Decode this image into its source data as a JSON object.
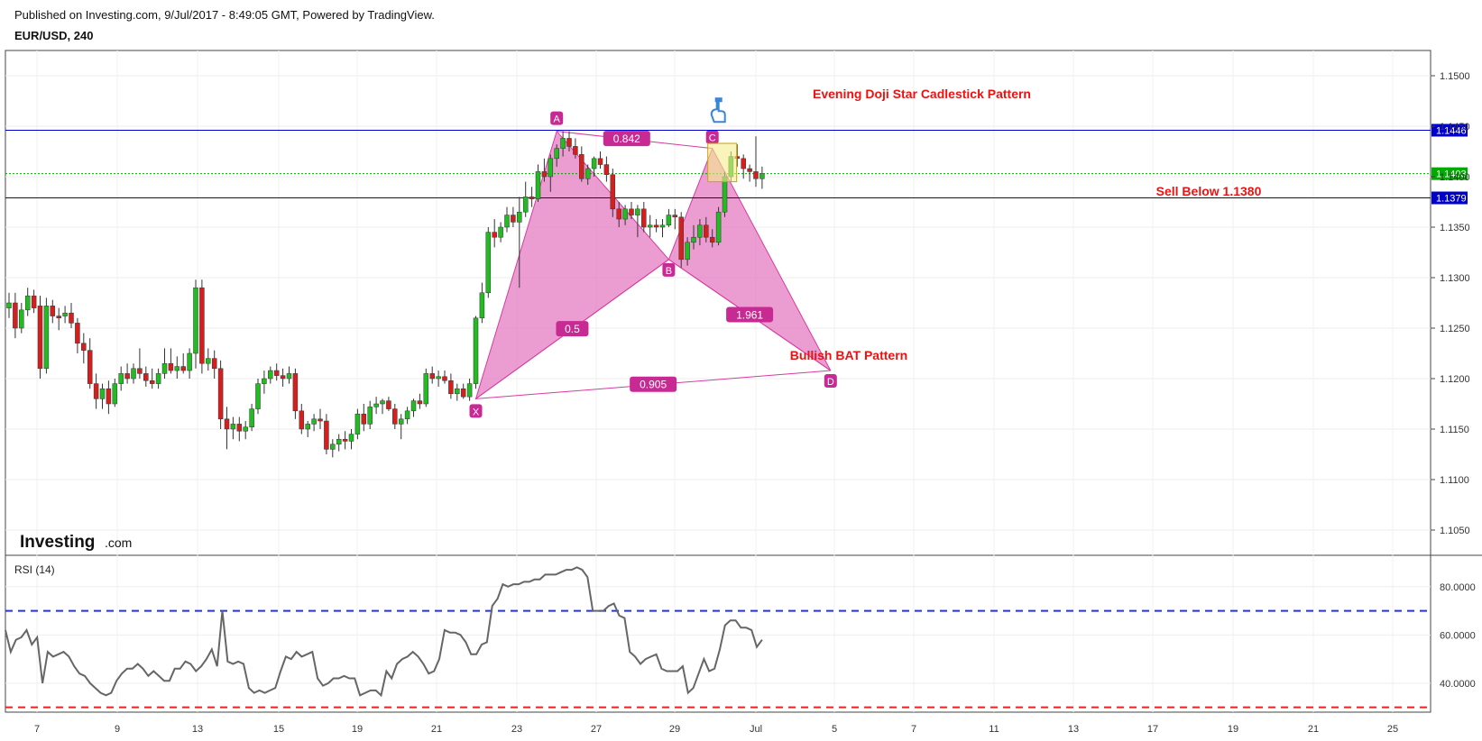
{
  "header": {
    "published": "Published on Investing.com, 9/Jul/2017 - 8:49:05 GMT, Powered by TradingView.",
    "symbol": "EUR/USD, 240"
  },
  "colors": {
    "up": "#22bb22",
    "down": "#d51f1f",
    "pattern_fill": "#e47cc3",
    "pattern_stroke": "#d63ba0",
    "label_bg": "#c72a92",
    "level_line": "#0000cc",
    "price_line": "#00aa00",
    "annotation_red": "#ee1111",
    "rsi_line": "#666666",
    "rsi_upper": "#2233ee",
    "rsi_lower": "#ee2222",
    "highlight": "#f5ec8a",
    "hand_icon": "#3a86d6"
  },
  "logo": {
    "brand": "Investing",
    "suffix": ".com"
  },
  "chart_data": {
    "type": "candlestick",
    "symbol": "EUR/USD",
    "interval": "240",
    "ylim": [
      1.1025,
      1.1525
    ],
    "y_ticks": [
      "1.1050",
      "1.1100",
      "1.1150",
      "1.1200",
      "1.1250",
      "1.1300",
      "1.1350",
      "1.1400",
      "1.1450",
      "1.1500"
    ],
    "x_ticks": [
      "7",
      "9",
      "13",
      "15",
      "19",
      "21",
      "23",
      "27",
      "29",
      "Jul",
      "5",
      "7",
      "11",
      "13",
      "17",
      "19",
      "21",
      "25"
    ],
    "grid": true,
    "candles_ohlc": [
      [
        1.127,
        1.1285,
        1.126,
        1.1275
      ],
      [
        1.1275,
        1.1285,
        1.124,
        1.125
      ],
      [
        1.125,
        1.1275,
        1.1245,
        1.1268
      ],
      [
        1.1268,
        1.129,
        1.1262,
        1.1282
      ],
      [
        1.1282,
        1.1288,
        1.1265,
        1.127
      ],
      [
        1.1272,
        1.1282,
        1.12,
        1.121
      ],
      [
        1.121,
        1.128,
        1.1205,
        1.1272
      ],
      [
        1.1272,
        1.1278,
        1.1255,
        1.1262
      ],
      [
        1.1262,
        1.127,
        1.1248,
        1.126
      ],
      [
        1.1262,
        1.1272,
        1.1255,
        1.1265
      ],
      [
        1.1265,
        1.1275,
        1.125,
        1.1255
      ],
      [
        1.1255,
        1.126,
        1.1225,
        1.1235
      ],
      [
        1.1235,
        1.1245,
        1.1215,
        1.1228
      ],
      [
        1.1228,
        1.124,
        1.119,
        1.1195
      ],
      [
        1.1195,
        1.1205,
        1.117,
        1.118
      ],
      [
        1.118,
        1.1195,
        1.117,
        1.119
      ],
      [
        1.119,
        1.1198,
        1.1165,
        1.1175
      ],
      [
        1.1175,
        1.12,
        1.1172,
        1.1195
      ],
      [
        1.1195,
        1.1212,
        1.1188,
        1.1205
      ],
      [
        1.1205,
        1.1215,
        1.1195,
        1.12
      ],
      [
        1.12,
        1.1215,
        1.1195,
        1.121
      ],
      [
        1.121,
        1.123,
        1.12,
        1.1205
      ],
      [
        1.1205,
        1.1212,
        1.1192,
        1.1198
      ],
      [
        1.1198,
        1.121,
        1.119,
        1.1195
      ],
      [
        1.1195,
        1.121,
        1.119,
        1.1205
      ],
      [
        1.1205,
        1.123,
        1.12,
        1.1215
      ],
      [
        1.1215,
        1.123,
        1.1205,
        1.1208
      ],
      [
        1.1208,
        1.1222,
        1.12,
        1.1212
      ],
      [
        1.1212,
        1.1225,
        1.1205,
        1.1208
      ],
      [
        1.1208,
        1.123,
        1.12,
        1.1225
      ],
      [
        1.1225,
        1.1298,
        1.121,
        1.129
      ],
      [
        1.129,
        1.1298,
        1.1205,
        1.1215
      ],
      [
        1.1215,
        1.123,
        1.1208,
        1.122
      ],
      [
        1.122,
        1.1228,
        1.12,
        1.121
      ],
      [
        1.121,
        1.1218,
        1.115,
        1.116
      ],
      [
        1.116,
        1.1172,
        1.113,
        1.115
      ],
      [
        1.115,
        1.1162,
        1.114,
        1.1155
      ],
      [
        1.1155,
        1.1162,
        1.1138,
        1.1148
      ],
      [
        1.1148,
        1.1158,
        1.114,
        1.1152
      ],
      [
        1.1152,
        1.1175,
        1.1148,
        1.117
      ],
      [
        1.117,
        1.12,
        1.1165,
        1.1195
      ],
      [
        1.1195,
        1.1208,
        1.1185,
        1.12
      ],
      [
        1.12,
        1.1212,
        1.1195,
        1.1208
      ],
      [
        1.1208,
        1.1215,
        1.1198,
        1.1203
      ],
      [
        1.1203,
        1.121,
        1.1192,
        1.12
      ],
      [
        1.12,
        1.1212,
        1.1195,
        1.1205
      ],
      [
        1.1205,
        1.121,
        1.116,
        1.1168
      ],
      [
        1.1168,
        1.1175,
        1.1145,
        1.115
      ],
      [
        1.115,
        1.1158,
        1.1142,
        1.1155
      ],
      [
        1.1155,
        1.1165,
        1.1148,
        1.116
      ],
      [
        1.116,
        1.117,
        1.115,
        1.1158
      ],
      [
        1.1158,
        1.1165,
        1.1125,
        1.113
      ],
      [
        1.113,
        1.114,
        1.1122,
        1.1135
      ],
      [
        1.1135,
        1.1145,
        1.1128,
        1.114
      ],
      [
        1.114,
        1.1148,
        1.113,
        1.1138
      ],
      [
        1.1138,
        1.115,
        1.113,
        1.1145
      ],
      [
        1.1145,
        1.117,
        1.114,
        1.1165
      ],
      [
        1.1165,
        1.1175,
        1.1148,
        1.1155
      ],
      [
        1.1155,
        1.1178,
        1.115,
        1.1172
      ],
      [
        1.1172,
        1.1182,
        1.1165,
        1.1175
      ],
      [
        1.1175,
        1.118,
        1.1165,
        1.1178
      ],
      [
        1.1178,
        1.1182,
        1.1168,
        1.117
      ],
      [
        1.117,
        1.1175,
        1.115,
        1.1155
      ],
      [
        1.1155,
        1.1165,
        1.114,
        1.116
      ],
      [
        1.116,
        1.1172,
        1.1155,
        1.1168
      ],
      [
        1.1168,
        1.118,
        1.1162,
        1.1178
      ],
      [
        1.1178,
        1.1185,
        1.117,
        1.1175
      ],
      [
        1.1175,
        1.121,
        1.1172,
        1.1205
      ],
      [
        1.1205,
        1.1212,
        1.1195,
        1.12
      ],
      [
        1.12,
        1.1208,
        1.1192,
        1.1202
      ],
      [
        1.1202,
        1.1208,
        1.1195,
        1.1198
      ],
      [
        1.1198,
        1.1205,
        1.118,
        1.1185
      ],
      [
        1.1185,
        1.1195,
        1.1178,
        1.119
      ],
      [
        1.119,
        1.1195,
        1.118,
        1.1182
      ],
      [
        1.1182,
        1.12,
        1.1178,
        1.1195
      ],
      [
        1.1195,
        1.1262,
        1.119,
        1.126
      ],
      [
        1.126,
        1.1295,
        1.1255,
        1.1285
      ],
      [
        1.1285,
        1.135,
        1.128,
        1.1345
      ],
      [
        1.1345,
        1.1358,
        1.133,
        1.134
      ],
      [
        1.134,
        1.1355,
        1.1335,
        1.135
      ],
      [
        1.135,
        1.137,
        1.1345,
        1.1362
      ],
      [
        1.1362,
        1.137,
        1.135,
        1.1355
      ],
      [
        1.1355,
        1.138,
        1.129,
        1.1365
      ],
      [
        1.1365,
        1.1395,
        1.136,
        1.138
      ],
      [
        1.138,
        1.139,
        1.137,
        1.1378
      ],
      [
        1.1378,
        1.1412,
        1.1375,
        1.1405
      ],
      [
        1.1405,
        1.1418,
        1.1395,
        1.14
      ],
      [
        1.14,
        1.1422,
        1.1385,
        1.1418
      ],
      [
        1.1418,
        1.1432,
        1.141,
        1.1428
      ],
      [
        1.1428,
        1.1445,
        1.142,
        1.1438
      ],
      [
        1.1438,
        1.1445,
        1.1425,
        1.143
      ],
      [
        1.143,
        1.1438,
        1.1418,
        1.1422
      ],
      [
        1.1422,
        1.143,
        1.1395,
        1.1398
      ],
      [
        1.1398,
        1.1412,
        1.1392,
        1.1408
      ],
      [
        1.1408,
        1.142,
        1.14,
        1.1418
      ],
      [
        1.1418,
        1.1425,
        1.1408,
        1.1412
      ],
      [
        1.1412,
        1.142,
        1.1395,
        1.1402
      ],
      [
        1.1402,
        1.1408,
        1.136,
        1.1368
      ],
      [
        1.1368,
        1.1375,
        1.135,
        1.1358
      ],
      [
        1.1358,
        1.1372,
        1.1352,
        1.1368
      ],
      [
        1.1368,
        1.1375,
        1.1358,
        1.1362
      ],
      [
        1.1362,
        1.1372,
        1.134,
        1.1368
      ],
      [
        1.1368,
        1.1375,
        1.1345,
        1.135
      ],
      [
        1.135,
        1.1362,
        1.134,
        1.1352
      ],
      [
        1.1352,
        1.1358,
        1.1345,
        1.135
      ],
      [
        1.135,
        1.1358,
        1.134,
        1.1352
      ],
      [
        1.1352,
        1.1368,
        1.135,
        1.1362
      ],
      [
        1.1362,
        1.1368,
        1.1348,
        1.136
      ],
      [
        1.136,
        1.1365,
        1.131,
        1.1318
      ],
      [
        1.1318,
        1.134,
        1.1312,
        1.1335
      ],
      [
        1.1335,
        1.1352,
        1.1328,
        1.134
      ],
      [
        1.134,
        1.1358,
        1.1332,
        1.1352
      ],
      [
        1.1352,
        1.136,
        1.1335,
        1.134
      ],
      [
        1.134,
        1.1348,
        1.133,
        1.1335
      ],
      [
        1.1335,
        1.137,
        1.1332,
        1.1365
      ],
      [
        1.1365,
        1.1405,
        1.136,
        1.14
      ],
      [
        1.14,
        1.1425,
        1.1395,
        1.142
      ],
      [
        1.142,
        1.1432,
        1.141,
        1.1418
      ],
      [
        1.1418,
        1.1422,
        1.1398,
        1.1408
      ],
      [
        1.1408,
        1.1412,
        1.1395,
        1.1405
      ],
      [
        1.1405,
        1.144,
        1.139,
        1.1398
      ],
      [
        1.1398,
        1.141,
        1.1388,
        1.1403
      ]
    ],
    "levels": [
      {
        "value": 1.1446,
        "label": "1.1446",
        "style": "solid"
      },
      {
        "value": 1.1379,
        "label": "1.1379",
        "style": "solid"
      },
      {
        "value": 1.1403,
        "label": "1.1403",
        "style": "dotted"
      }
    ],
    "harmonic_pattern": {
      "name": "Bullish BAT Pattern",
      "points": [
        {
          "label": "X",
          "bar": 75,
          "price": 1.118
        },
        {
          "label": "A",
          "bar": 88,
          "price": 1.1445
        },
        {
          "label": "B",
          "bar": 106,
          "price": 1.1318
        },
        {
          "label": "C",
          "bar": 113,
          "price": 1.1428
        },
        {
          "label": "D",
          "bar": 132,
          "price": 1.1208
        }
      ],
      "ratios": [
        {
          "between": "XB",
          "value": "0.5"
        },
        {
          "between": "AC",
          "value": "0.842"
        },
        {
          "between": "BD",
          "value": "1.961"
        },
        {
          "between": "XD",
          "value": "0.905"
        }
      ]
    },
    "annotations": {
      "doji": "Evening Doji Star Cadlestick Pattern",
      "sell": "Sell Below 1.1380",
      "bat": "Bullish BAT Pattern"
    },
    "rsi": {
      "title": "RSI (14)",
      "ylim": [
        28,
        93
      ],
      "y_ticks": [
        "40.0000",
        "60.0000",
        "80.0000"
      ],
      "upper": 70,
      "lower": 30,
      "values": [
        62,
        53,
        58,
        59,
        62,
        56,
        59,
        40,
        53,
        51,
        52,
        53,
        51,
        47,
        44,
        43,
        40,
        38,
        36,
        35,
        36,
        41,
        44,
        46,
        46,
        48,
        46,
        43,
        45,
        43,
        41,
        41,
        46,
        46,
        49,
        48,
        45,
        47,
        50,
        54,
        47,
        70,
        49,
        48,
        49,
        48,
        38,
        36,
        37,
        36,
        37,
        38,
        45,
        51,
        50,
        53,
        51,
        52,
        53,
        42,
        39,
        40,
        42,
        42,
        43,
        42,
        42,
        35,
        36,
        37,
        37,
        35,
        45,
        42,
        48,
        50,
        51,
        53,
        51,
        48,
        44,
        45,
        50,
        62,
        61,
        61,
        60,
        57,
        52,
        52,
        56,
        57,
        72,
        75,
        81,
        80,
        81,
        81,
        82,
        82,
        83,
        83,
        85,
        85,
        85,
        86,
        87,
        87,
        88,
        87,
        84,
        70,
        70,
        70,
        72,
        73,
        68,
        67,
        53,
        51,
        48,
        50,
        51,
        52,
        46,
        45,
        45,
        45,
        47,
        36,
        38,
        44,
        50,
        45,
        46,
        54,
        64,
        66,
        66,
        63,
        63,
        62,
        55,
        58
      ]
    }
  }
}
